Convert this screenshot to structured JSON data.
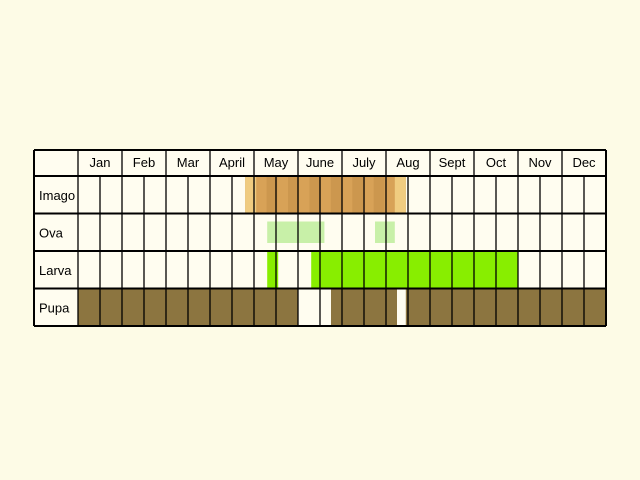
{
  "chart_data": {
    "type": "table",
    "months": [
      "Jan",
      "Feb",
      "Mar",
      "April",
      "May",
      "June",
      "July",
      "Aug",
      "Sept",
      "Oct",
      "Nov",
      "Dec"
    ],
    "stages": [
      {
        "label": "Imago",
        "color": "#d8a257",
        "segments": [
          {
            "start_month": 4.8,
            "end_month": 8.45,
            "color": "#d8a257"
          }
        ]
      },
      {
        "label": "Ova",
        "color": "#c8f0a8",
        "segments": [
          {
            "start_month": 5.3,
            "end_month": 6.6,
            "color": "#c8f0a8"
          },
          {
            "start_month": 7.75,
            "end_month": 8.2,
            "color": "#c8f0a8"
          }
        ]
      },
      {
        "label": "Larva",
        "color": "#88ee00",
        "segments": [
          {
            "start_month": 5.3,
            "end_month": 5.55,
            "color": "#88ee00"
          },
          {
            "start_month": 6.3,
            "end_month": 11.0,
            "color": "#88ee00"
          }
        ]
      },
      {
        "label": "Pupa",
        "color": "#8c7540",
        "segments": [
          {
            "start_month": 1.0,
            "end_month": 6.0,
            "color": "#8c7540"
          },
          {
            "start_month": 6.75,
            "end_month": 8.25,
            "color": "#8c7540"
          },
          {
            "start_month": 8.45,
            "end_month": 13.0,
            "color": "#8c7540"
          }
        ]
      }
    ],
    "cells_per_month": 2,
    "grid": true
  },
  "colors": {
    "background": "#fdfbe6",
    "cell_fill": "#fffdf0",
    "grid_line": "#000000"
  }
}
